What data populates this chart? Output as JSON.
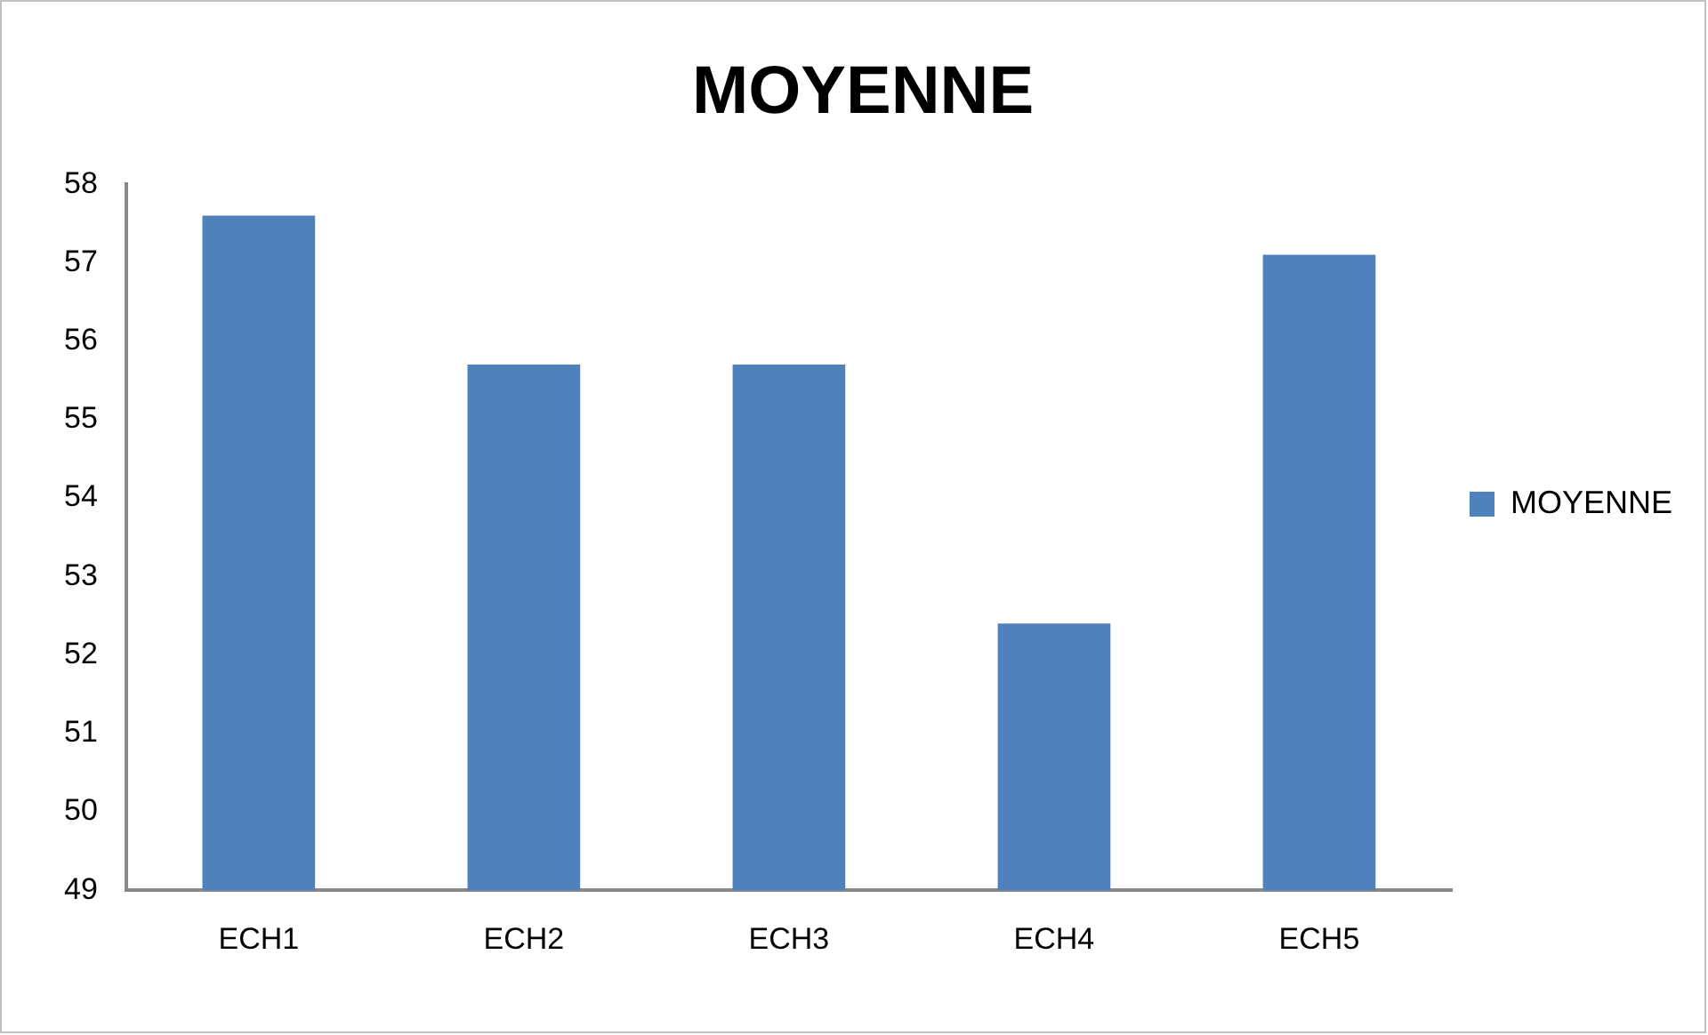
{
  "chart_data": {
    "type": "bar",
    "title": "MOYENNE",
    "categories": [
      "ECH1",
      "ECH2",
      "ECH3",
      "ECH4",
      "ECH5"
    ],
    "series": [
      {
        "name": "MOYENNE",
        "color": "#4f81bd",
        "values": [
          57.6,
          55.7,
          55.7,
          52.4,
          57.1
        ]
      }
    ],
    "ylim": [
      49,
      58
    ],
    "yticks": [
      49,
      50,
      51,
      52,
      53,
      54,
      55,
      56,
      57,
      58
    ],
    "grid": false,
    "legend": "right"
  }
}
